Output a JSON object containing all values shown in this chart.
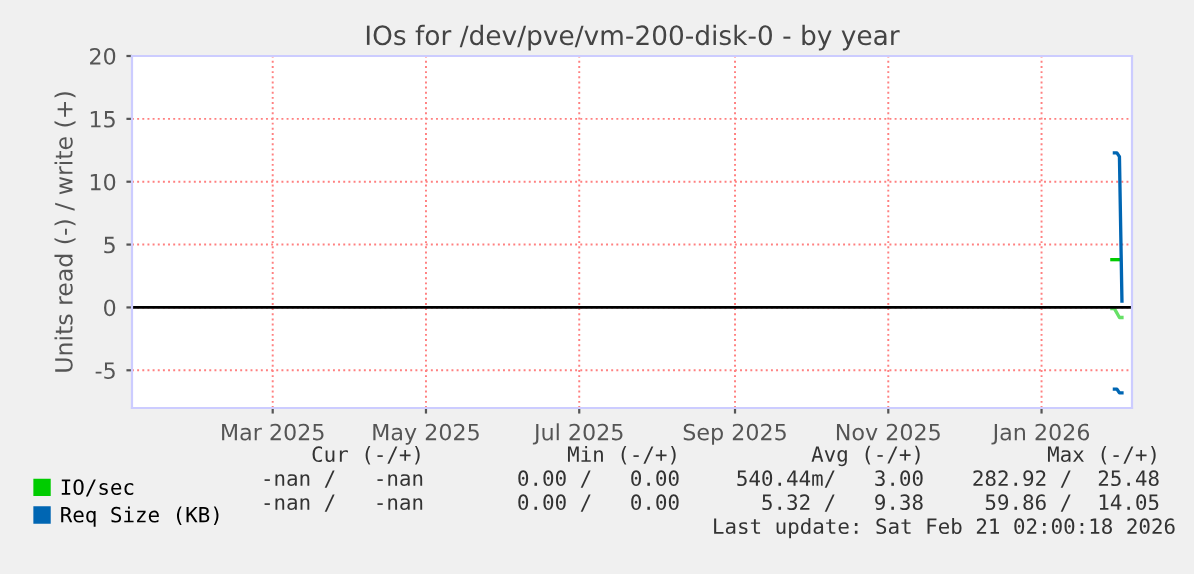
{
  "chart_data": {
    "type": "line",
    "title": "IOs for /dev/pve/vm-200-disk-0 - by year",
    "ylabel": "Units read (-) / write (+)",
    "xlim": [
      "2025-01-04",
      "2026-02-06"
    ],
    "xticks": [
      {
        "value": "2025-03-01",
        "label": "Mar 2025"
      },
      {
        "value": "2025-05-01",
        "label": "May 2025"
      },
      {
        "value": "2025-07-01",
        "label": "Jul 2025"
      },
      {
        "value": "2025-09-01",
        "label": "Sep 2025"
      },
      {
        "value": "2025-11-01",
        "label": "Nov 2025"
      },
      {
        "value": "2026-01-01",
        "label": "Jan 2026"
      }
    ],
    "ylim": [
      -8,
      20
    ],
    "yticks": [
      -5,
      0,
      5,
      10,
      15,
      20
    ],
    "series": [
      {
        "name": "IO/sec",
        "color": "#00cc00",
        "x": [
          "2026-01-29",
          "2026-01-30",
          "2026-02-01"
        ],
        "values": [
          3.8,
          3.8,
          3.8
        ]
      },
      {
        "color": "#66e066",
        "x": [
          "2026-01-29",
          "2026-01-30",
          "2026-02-01",
          "2026-02-02"
        ],
        "values": [
          -0.1,
          -0.1,
          -0.8,
          -0.8
        ]
      },
      {
        "name": "Req Size (KB)",
        "color": "#0066b3",
        "x": [
          "2026-01-30",
          "2026-01-31",
          "2026-02-01",
          "2026-02-02"
        ],
        "values": [
          12.3,
          12.3,
          12.0,
          0.5
        ]
      },
      {
        "color": "#0066b3",
        "x": [
          "2026-01-30",
          "2026-01-31",
          "2026-02-01",
          "2026-02-02"
        ],
        "values": [
          -6.5,
          -6.5,
          -6.8,
          -6.8
        ]
      }
    ],
    "ref_lines": [
      {
        "axis": "y",
        "value": 0,
        "color": "#000000"
      }
    ],
    "grid": true,
    "legend": "bottom left",
    "annotations": [
      "Cur (-/+)",
      "Min (-/+)",
      "Avg (-/+)",
      "Max (-/+)",
      "-nan /   -nan",
      "0.00 /   0.00",
      "540.44m/   3.00",
      "282.92 /  25.48",
      "-nan /   -nan",
      "0.00 /   0.00",
      "5.32 /   9.38",
      "59.86 /  14.05",
      "Last update: Sat Feb 21 02:00:18 2026"
    ]
  }
}
